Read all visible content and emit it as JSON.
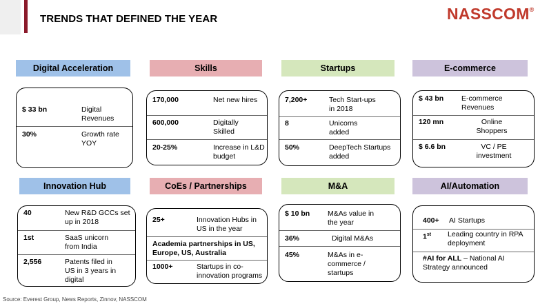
{
  "slide": {
    "title": "TRENDS THAT DEFINED THE YEAR",
    "logo": "NASSCOM",
    "logo_mark": "®",
    "source": "Source: Everest Group, News Reports, Zinnov, NASSCOM"
  },
  "colors": {
    "accent": "#8b1a2b",
    "logo": "#c0392b",
    "blue": "#9fc1e8",
    "pink": "#e7aeb2",
    "green": "#d5e7bc",
    "purple": "#cdc3dc"
  },
  "digital": {
    "header": "Digital Acceleration",
    "r1k": "$ 33 bn",
    "r1v": "Digital Revenues",
    "r2k": "30%",
    "r2v": "Growth rate YOY"
  },
  "skills": {
    "header": "Skills",
    "r1k": "170,000",
    "r1v": "Net new hires",
    "r2k": "600,000",
    "r2v": "Digitally Skilled",
    "r3k": "20-25%",
    "r3v": "Increase in L&D budget"
  },
  "startups": {
    "header": "Startups",
    "r1k": "7,200+",
    "r1v": "Tech Start-ups in 2018",
    "r2k": "8",
    "r2v": "Unicorns added",
    "r3k": "50%",
    "r3v": "DeepTech Startups added"
  },
  "ecommerce": {
    "header": "E-commerce",
    "r1k": "$ 43 bn",
    "r1v": "E-commerce Revenues",
    "r2k": "120 mn",
    "r2v": "Online Shoppers",
    "r3k": "$ 6.6 bn",
    "r3v": "VC / PE investment"
  },
  "innovation": {
    "header": "Innovation Hub",
    "r1k": "40",
    "r1v": "New R&D GCCs set up in 2018",
    "r2k": "1st",
    "r2v": "SaaS unicorn from India",
    "r3k": "2,556",
    "r3v": "Patents filed in US in 3 years in digital"
  },
  "coes": {
    "header": "CoEs / Partnerships",
    "r1k": "25+",
    "r1v": "Innovation Hubs in US in the year",
    "r2": "Academia partnerships in US, Europe, US, Australia",
    "r3k": "1000+",
    "r3v": "Startups in co-innovation programs"
  },
  "ma": {
    "header": "M&A",
    "r1k": "$ 10 bn",
    "r1v": "M&As value in the year",
    "r2k": "36%",
    "r2v": "Digital M&As",
    "r3k": "45%",
    "r3v": "M&As in e-commerce / startups"
  },
  "ai": {
    "header": "AI/Automation",
    "r1k": "400+",
    "r1v": "AI Startups",
    "r2k": "1",
    "r2sup": "st",
    "r2v": "Leading country in RPA deployment",
    "r3k": "#AI for ALL",
    "r3v": " – National AI Strategy announced"
  }
}
